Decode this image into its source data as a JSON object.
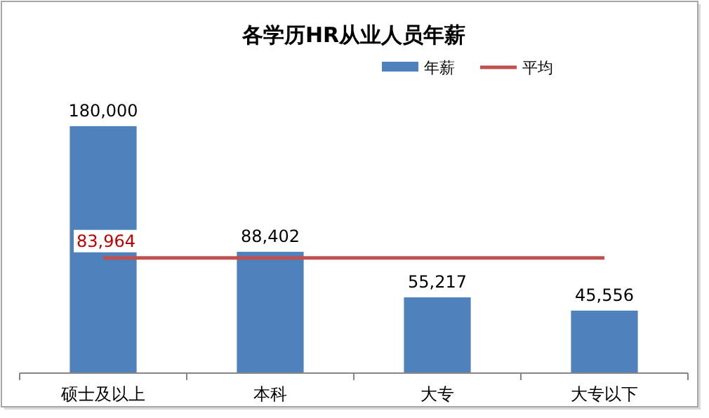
{
  "chart_data": {
    "type": "bar",
    "title": "各学历HR从业人员年薪",
    "categories": [
      "硕士及以上",
      "本科",
      "大专",
      "大专以下"
    ],
    "series": [
      {
        "name": "年薪",
        "color": "#4f81bd",
        "values": [
          180000,
          88402,
          55217,
          45556
        ],
        "value_labels": [
          "180,000",
          "88,402",
          "55,217",
          "45,556"
        ]
      },
      {
        "name": "平均",
        "type": "line",
        "color": "#c0504d",
        "values": [
          83964,
          83964,
          83964,
          83964
        ],
        "value_labels": [
          "83,964",
          null,
          null,
          null
        ]
      }
    ],
    "legend": "top right"
  }
}
